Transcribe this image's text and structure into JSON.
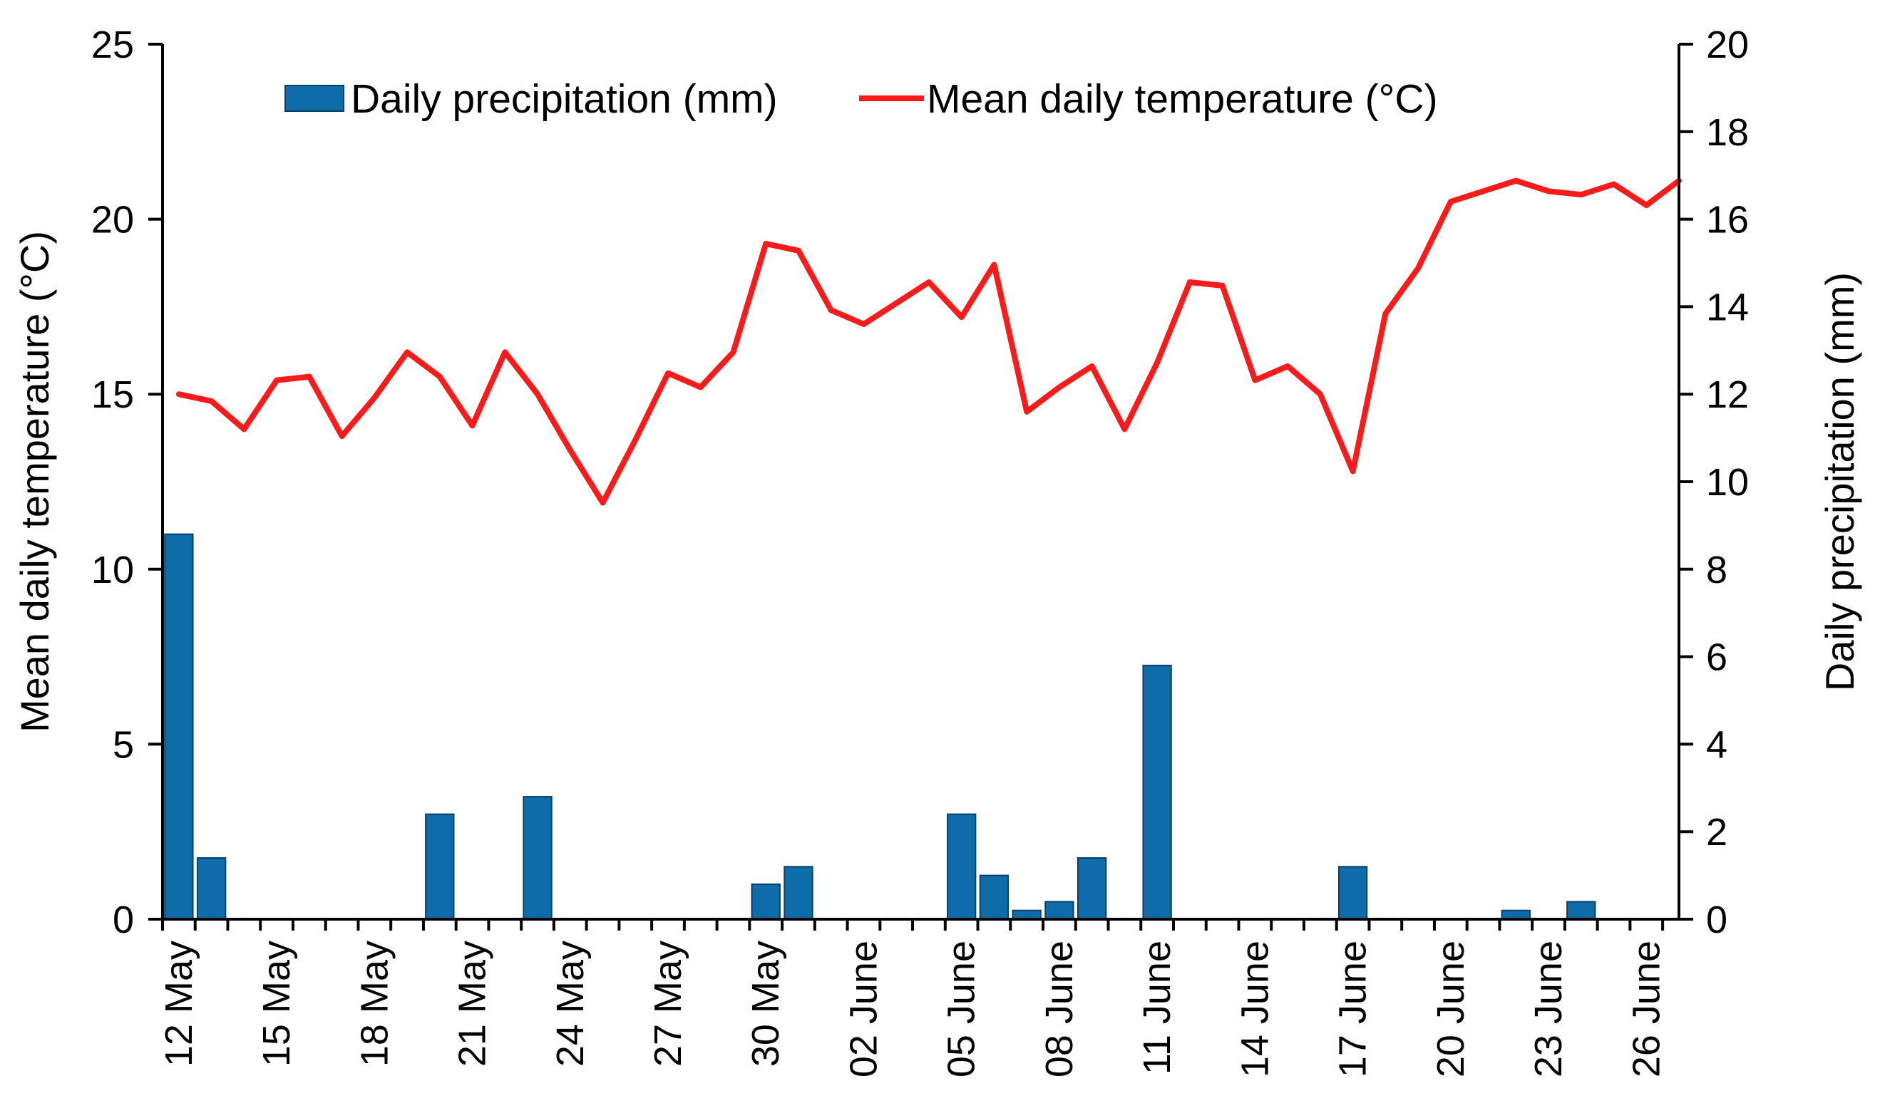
{
  "chart_data": {
    "type": "bar+line",
    "title": "",
    "colors": {
      "precipitation": "#0E6CAB",
      "temperature": "#FF1A1A",
      "axis": "#000000"
    },
    "legend": {
      "placement": "top-center",
      "items": [
        {
          "key": "precipitation",
          "label": "Daily precipitation (mm)"
        },
        {
          "key": "temperature",
          "label": "Mean daily temperature (°C)"
        }
      ]
    },
    "x_axis": {
      "label": "",
      "tick_labels": [
        "12 May",
        "15 May",
        "18 May",
        "21 May",
        "24 May",
        "27 May",
        "30 May",
        "02 June",
        "05 June",
        "08 June",
        "11 June",
        "14 June",
        "17 June",
        "20 June",
        "23 June",
        "26 June"
      ],
      "tick_day_index": [
        0,
        3,
        6,
        9,
        12,
        15,
        18,
        21,
        24,
        27,
        30,
        33,
        36,
        39,
        42,
        45
      ],
      "n_days": 47
    },
    "y_left": {
      "label": "Mean daily temperature (°C)",
      "ylim": [
        0,
        25
      ],
      "ticks": [
        "0",
        "5",
        "10",
        "15",
        "20",
        "25"
      ],
      "tick_values": [
        0,
        5,
        10,
        15,
        20,
        25
      ]
    },
    "y_right": {
      "label": "Daily precipitation (mm)",
      "ylim": [
        0,
        20
      ],
      "ticks": [
        "0",
        "2",
        "4",
        "6",
        "8",
        "10",
        "12",
        "14",
        "16",
        "18",
        "20"
      ],
      "tick_values": [
        0,
        2,
        4,
        6,
        8,
        10,
        12,
        14,
        16,
        18,
        20
      ]
    },
    "series": [
      {
        "name": "Daily precipitation (mm)",
        "type": "bar",
        "axis": "right",
        "values": [
          8.8,
          1.4,
          0,
          0,
          0,
          0,
          0,
          0,
          2.4,
          0,
          0,
          2.8,
          0,
          0,
          0,
          0,
          0,
          0,
          0.8,
          1.2,
          0,
          0,
          0,
          0,
          2.4,
          1.0,
          0.2,
          0.4,
          1.4,
          0,
          5.8,
          0,
          0,
          0,
          0,
          0,
          1.2,
          0,
          0,
          0,
          0,
          0.2,
          0,
          0.4,
          0,
          0,
          0
        ]
      },
      {
        "name": "Mean daily temperature (°C)",
        "type": "line",
        "axis": "left",
        "values": [
          15.0,
          14.8,
          14.0,
          15.4,
          15.5,
          13.8,
          14.9,
          16.2,
          15.5,
          14.1,
          16.2,
          15.0,
          13.4,
          11.9,
          13.7,
          15.6,
          15.2,
          16.2,
          19.3,
          19.1,
          17.4,
          17.0,
          17.6,
          18.2,
          17.2,
          18.7,
          14.5,
          15.2,
          15.8,
          14.0,
          15.9,
          18.2,
          18.1,
          15.4,
          15.8,
          15.0,
          12.8,
          17.3,
          18.6,
          20.5,
          20.8,
          21.1,
          20.8,
          20.7,
          21.0,
          20.4,
          21.1
        ]
      }
    ]
  }
}
